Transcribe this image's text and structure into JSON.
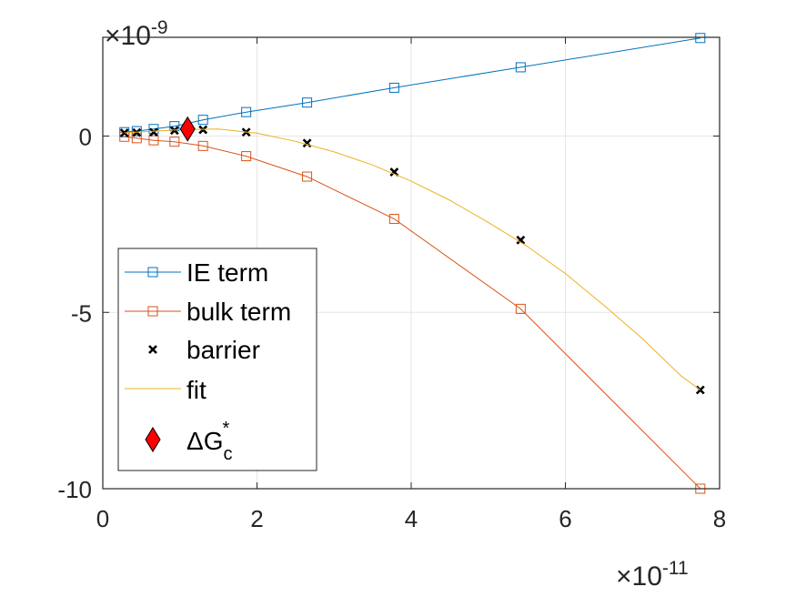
{
  "chart_data": {
    "type": "line",
    "x_multiplier": "×10",
    "x_exponent": "-11",
    "y_multiplier": "×10",
    "y_exponent": "-9",
    "xlim": [
      0,
      8
    ],
    "ylim": [
      -10,
      2.8
    ],
    "x_ticks": [
      0,
      2,
      4,
      6,
      8
    ],
    "x_tick_labels": [
      "0",
      "2",
      "4",
      "6",
      "8"
    ],
    "y_ticks": [
      -10,
      -5,
      0
    ],
    "y_tick_labels": [
      "-10",
      "-5",
      "0"
    ],
    "grid": true,
    "legend_position": "bottom-left",
    "x": [
      0.28,
      0.44,
      0.66,
      0.93,
      1.3,
      1.86,
      2.65,
      3.78,
      5.42,
      7.75
    ],
    "series": [
      {
        "name": "IE term",
        "kind": "line+square",
        "color": "#0072BD",
        "values": [
          0.11,
          0.14,
          0.2,
          0.28,
          0.46,
          0.68,
          0.95,
          1.37,
          1.95,
          2.78
        ]
      },
      {
        "name": "bulk term",
        "kind": "line+square",
        "color": "#D95319",
        "values": [
          -0.02,
          -0.06,
          -0.12,
          -0.16,
          -0.28,
          -0.57,
          -1.15,
          -2.35,
          -4.9,
          -10.0
        ]
      },
      {
        "name": "barrier",
        "kind": "x-marker",
        "color": "#000000",
        "values": [
          0.09,
          0.1,
          0.11,
          0.16,
          0.18,
          0.11,
          -0.2,
          -1.02,
          -2.95,
          -7.2
        ]
      },
      {
        "name": "fit",
        "kind": "smooth-line",
        "color": "#EDB120",
        "x": [
          0.28,
          0.5,
          0.75,
          1.0,
          1.25,
          1.5,
          2.0,
          2.5,
          3.0,
          3.5,
          4.0,
          4.5,
          5.0,
          5.5,
          6.0,
          6.5,
          7.0,
          7.5,
          7.75
        ],
        "values": [
          0.09,
          0.12,
          0.15,
          0.18,
          0.19,
          0.2,
          0.08,
          -0.15,
          -0.45,
          -0.82,
          -1.28,
          -1.82,
          -2.45,
          -3.12,
          -3.9,
          -4.8,
          -5.75,
          -6.8,
          -7.2
        ]
      }
    ],
    "critical_point": {
      "name": "ΔG",
      "sub": "c",
      "sup": "*",
      "color": "#FF0000",
      "x": 1.1,
      "y": 0.2
    }
  }
}
